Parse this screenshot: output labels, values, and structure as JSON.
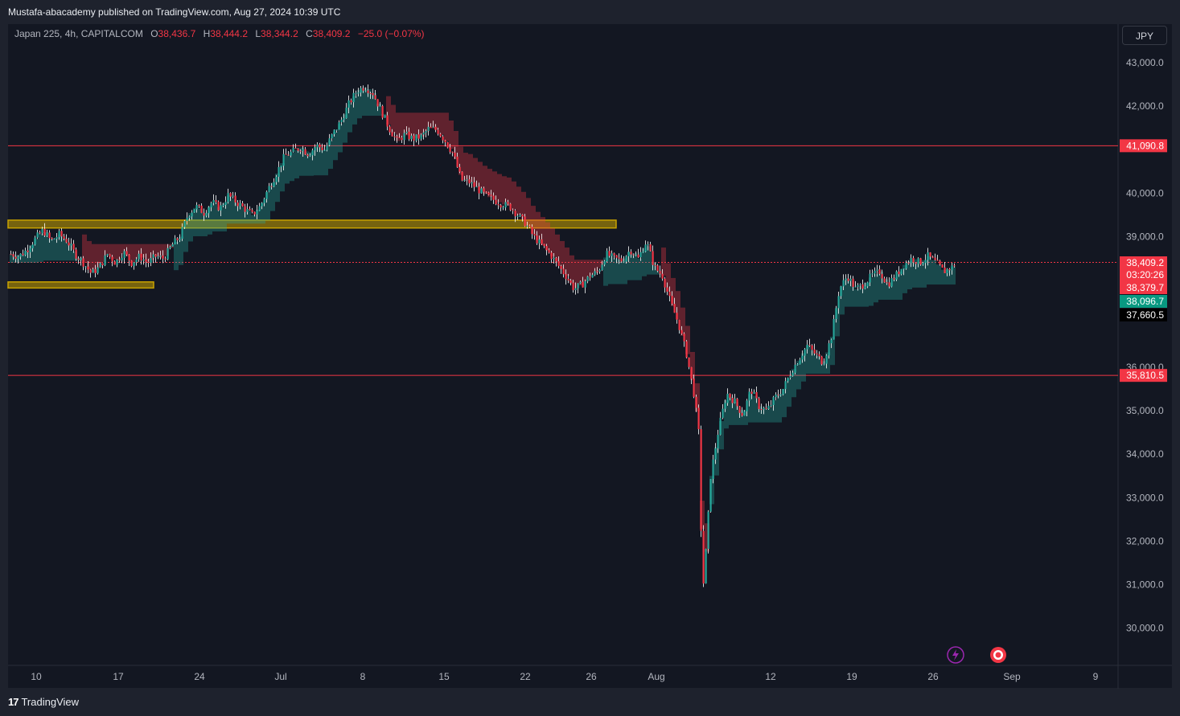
{
  "header": {
    "publish_info": "Mustafa-abacademy published on TradingView.com, Aug 27, 2024 10:39 UTC"
  },
  "legend": {
    "symbol": "Japan 225, 4h, CAPITALCOM",
    "o_label": "O",
    "o_value": "38,436.7",
    "h_label": "H",
    "h_value": "38,444.2",
    "l_label": "L",
    "l_value": "38,344.2",
    "c_label": "C",
    "c_value": "38,409.2",
    "change": "−25.0 (−0.07%)"
  },
  "currency": "JPY",
  "footer": {
    "brand": "TradingView"
  },
  "colors": {
    "up": "#26a69a",
    "down": "#f23645",
    "zone": "#c8a200",
    "level_line": "#f23645",
    "badge_red": "#f23645",
    "badge_teal": "#089981"
  },
  "chart_data": {
    "type": "candlestick",
    "symbol": "Japan 225",
    "timeframe": "4h",
    "ylim": [
      29500,
      43500
    ],
    "y_ticks": [
      "43,000.0",
      "42,000.0",
      "40,000.0",
      "39,000.0",
      "36,000.0",
      "35,000.0",
      "34,000.0",
      "33,000.0",
      "32,000.0",
      "31,000.0",
      "30,000.0"
    ],
    "y_tick_values": [
      43000,
      42000,
      40000,
      39000,
      36000,
      35000,
      34000,
      33000,
      32000,
      31000,
      30000
    ],
    "x_ticks": [
      "10",
      "17",
      "24",
      "Jul",
      "8",
      "15",
      "22",
      "26",
      "Aug",
      "12",
      "19",
      "26",
      "Sep",
      "9"
    ],
    "horizontal_levels": [
      {
        "value": 41090.8,
        "label": "41,090.8"
      },
      {
        "value": 35810.5,
        "label": "35,810.5"
      }
    ],
    "zones": [
      {
        "from": 39200,
        "to": 39380
      },
      {
        "from": 37820,
        "to": 37960
      }
    ],
    "price_badges": [
      {
        "label": "38,409.2",
        "value": 38409.2,
        "kind": "last"
      },
      {
        "label": "03:20:26",
        "kind": "countdown"
      },
      {
        "label": "38,379.7",
        "value": 38379.7,
        "kind": "red"
      },
      {
        "label": "38,096.7",
        "value": 38096.7,
        "kind": "teal"
      },
      {
        "label": "37,660.5",
        "value": 37660.5,
        "kind": "black"
      }
    ],
    "price_path": [
      [
        0,
        38600
      ],
      [
        10,
        38550
      ],
      [
        20,
        38700
      ],
      [
        30,
        38950
      ],
      [
        40,
        39150
      ],
      [
        50,
        38900
      ],
      [
        60,
        39050
      ],
      [
        70,
        38900
      ],
      [
        80,
        38600
      ],
      [
        90,
        38400
      ],
      [
        100,
        38150
      ],
      [
        110,
        38300
      ],
      [
        120,
        38600
      ],
      [
        130,
        38400
      ],
      [
        140,
        38650
      ],
      [
        150,
        38400
      ],
      [
        160,
        38550
      ],
      [
        170,
        38400
      ],
      [
        180,
        38550
      ],
      [
        190,
        38500
      ],
      [
        200,
        38800
      ],
      [
        210,
        39000
      ],
      [
        220,
        39500
      ],
      [
        230,
        39700
      ],
      [
        240,
        39550
      ],
      [
        250,
        39800
      ],
      [
        260,
        39650
      ],
      [
        270,
        39950
      ],
      [
        280,
        39800
      ],
      [
        290,
        39650
      ],
      [
        300,
        39500
      ],
      [
        310,
        39700
      ],
      [
        320,
        40100
      ],
      [
        330,
        40450
      ],
      [
        340,
        40850
      ],
      [
        350,
        40950
      ],
      [
        360,
        41050
      ],
      [
        370,
        40900
      ],
      [
        380,
        41100
      ],
      [
        390,
        41000
      ],
      [
        400,
        41350
      ],
      [
        410,
        41650
      ],
      [
        420,
        42050
      ],
      [
        430,
        42350
      ],
      [
        440,
        42450
      ],
      [
        450,
        42300
      ],
      [
        460,
        41900
      ],
      [
        470,
        41500
      ],
      [
        480,
        41200
      ],
      [
        490,
        41350
      ],
      [
        500,
        41250
      ],
      [
        510,
        41300
      ],
      [
        520,
        41500
      ],
      [
        530,
        41450
      ],
      [
        540,
        41200
      ],
      [
        550,
        40900
      ],
      [
        560,
        40300
      ],
      [
        570,
        40250
      ],
      [
        580,
        40100
      ],
      [
        590,
        39950
      ],
      [
        600,
        39850
      ],
      [
        610,
        39750
      ],
      [
        620,
        39700
      ],
      [
        630,
        39500
      ],
      [
        640,
        39300
      ],
      [
        650,
        39000
      ],
      [
        660,
        38800
      ],
      [
        670,
        38600
      ],
      [
        680,
        38350
      ],
      [
        690,
        38100
      ],
      [
        700,
        37800
      ],
      [
        710,
        37900
      ],
      [
        720,
        38100
      ],
      [
        730,
        38200
      ],
      [
        740,
        38600
      ],
      [
        750,
        38500
      ],
      [
        760,
        38450
      ],
      [
        770,
        38700
      ],
      [
        780,
        38500
      ],
      [
        790,
        38900
      ],
      [
        800,
        38300
      ],
      [
        810,
        38100
      ],
      [
        820,
        37500
      ],
      [
        830,
        37000
      ],
      [
        840,
        36300
      ],
      [
        850,
        35300
      ],
      [
        855,
        34500
      ],
      [
        860,
        30800
      ],
      [
        865,
        32000
      ],
      [
        870,
        33500
      ],
      [
        880,
        34600
      ],
      [
        890,
        35400
      ],
      [
        900,
        35200
      ],
      [
        910,
        34900
      ],
      [
        920,
        35500
      ],
      [
        930,
        35100
      ],
      [
        940,
        35000
      ],
      [
        950,
        35300
      ],
      [
        960,
        35500
      ],
      [
        970,
        35900
      ],
      [
        980,
        36200
      ],
      [
        990,
        36500
      ],
      [
        1000,
        36300
      ],
      [
        1010,
        36100
      ],
      [
        1020,
        36700
      ],
      [
        1030,
        37800
      ],
      [
        1040,
        38100
      ],
      [
        1050,
        37800
      ],
      [
        1060,
        37900
      ],
      [
        1070,
        38100
      ],
      [
        1080,
        38200
      ],
      [
        1090,
        37900
      ],
      [
        1100,
        38100
      ],
      [
        1110,
        38350
      ],
      [
        1120,
        38500
      ],
      [
        1130,
        38400
      ],
      [
        1140,
        38550
      ],
      [
        1150,
        38400
      ],
      [
        1160,
        38200
      ],
      [
        1170,
        38300
      ],
      [
        1175,
        38409
      ]
    ]
  }
}
